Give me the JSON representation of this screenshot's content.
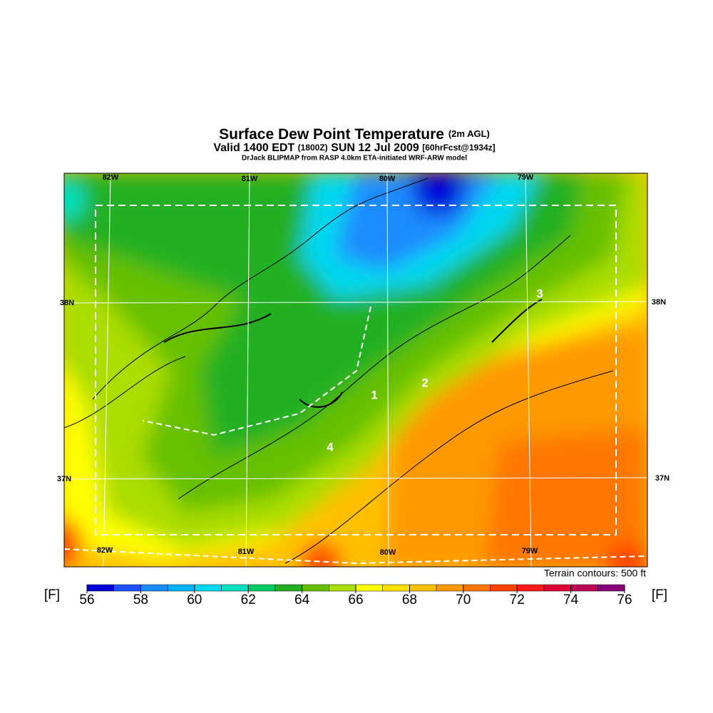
{
  "title": "Surface Dew Point Temperature",
  "title_note": "(2m AGL)",
  "subtitle": "Valid 1400 EDT",
  "subtitle_time": "(1800Z)",
  "subtitle_date": "SUN 12 Jul 2009",
  "subtitle_forecast": "[60hrFcst@1934z]",
  "credit": "DrJack BLIPMAP from RASP 4.0km ETA-initiated WRF-ARW model",
  "map": {
    "lon_labels": [
      "82W",
      "81W",
      "80W",
      "79W"
    ],
    "lat_labels": [
      "38N",
      "37N"
    ],
    "site_labels": [
      "1",
      "2",
      "3",
      "4"
    ]
  },
  "terrain_note": "Terrain contours: 500 ft",
  "colorbar": {
    "unit": "[F]",
    "ticks": [
      56,
      58,
      60,
      62,
      64,
      66,
      68,
      70,
      72,
      74,
      76
    ],
    "colors": [
      "#0000d8",
      "#1e50ff",
      "#1a8cff",
      "#00b4ff",
      "#00d8f0",
      "#00e0c0",
      "#00cc66",
      "#22b022",
      "#66c000",
      "#aadd00",
      "#ffff00",
      "#ffe000",
      "#ffc000",
      "#ff9900",
      "#ff7700",
      "#ff4400",
      "#ff1a1a",
      "#dd0033",
      "#bb0055",
      "#880077"
    ]
  }
}
